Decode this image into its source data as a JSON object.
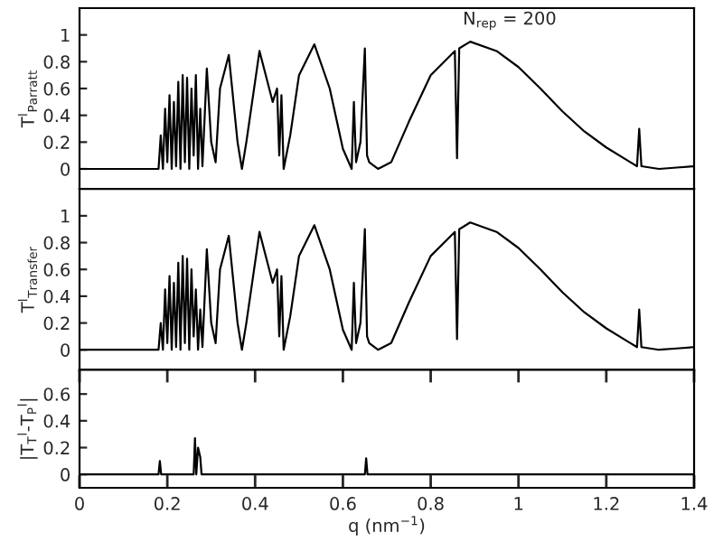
{
  "chart_data": [
    {
      "type": "line",
      "ylabel": "T$^{l}$$_{Parratt}$",
      "xlim": [
        0,
        1.4
      ],
      "ylim": [
        -0.15,
        1.2
      ],
      "yticks": [
        0,
        0.2,
        0.4,
        0.6,
        0.8,
        1
      ],
      "tick_labels": "y",
      "grid": false,
      "legend": false,
      "annotations": [
        "N$_{rep}$ = 200"
      ],
      "series": [
        {
          "color": "#000000",
          "x": [
            0,
            0.18,
            0.185,
            0.19,
            0.195,
            0.2,
            0.205,
            0.21,
            0.215,
            0.22,
            0.225,
            0.23,
            0.235,
            0.24,
            0.245,
            0.25,
            0.255,
            0.26,
            0.265,
            0.27,
            0.275,
            0.28,
            0.29,
            0.3,
            0.31,
            0.32,
            0.34,
            0.36,
            0.37,
            0.38,
            0.41,
            0.44,
            0.45,
            0.455,
            0.46,
            0.465,
            0.48,
            0.5,
            0.535,
            0.57,
            0.6,
            0.62,
            0.625,
            0.63,
            0.64,
            0.65,
            0.655,
            0.66,
            0.68,
            0.71,
            0.75,
            0.8,
            0.855,
            0.86,
            0.865,
            0.89,
            0.95,
            1.0,
            1.05,
            1.1,
            1.15,
            1.2,
            1.25,
            1.27,
            1.275,
            1.28,
            1.32,
            1.36,
            1.4
          ],
          "values": [
            0,
            0,
            0.25,
            0,
            0.45,
            0.05,
            0.55,
            0,
            0.5,
            0.02,
            0.65,
            0,
            0.7,
            0.05,
            0.68,
            0,
            0.6,
            0.1,
            0.7,
            0,
            0.45,
            0.02,
            0.75,
            0.2,
            0.05,
            0.6,
            0.85,
            0.2,
            0,
            0.2,
            0.88,
            0.5,
            0.6,
            0.1,
            0.55,
            0,
            0.25,
            0.7,
            0.93,
            0.6,
            0.15,
            0,
            0.5,
            0.05,
            0.2,
            0.9,
            0.1,
            0.05,
            0,
            0.05,
            0.35,
            0.7,
            0.88,
            0.08,
            0.9,
            0.95,
            0.88,
            0.76,
            0.6,
            0.43,
            0.28,
            0.16,
            0.06,
            0.02,
            0.3,
            0.02,
            0,
            0.01,
            0.02
          ]
        }
      ]
    },
    {
      "type": "line",
      "ylabel": "T$^{l}$$_{Transfer}$",
      "xlim": [
        0,
        1.4
      ],
      "ylim": [
        -0.15,
        1.2
      ],
      "yticks": [
        0,
        0.2,
        0.4,
        0.6,
        0.8,
        1
      ],
      "tick_labels": "y",
      "grid": false,
      "legend": false,
      "series": [
        {
          "color": "#000000",
          "x": [
            0,
            0.18,
            0.185,
            0.19,
            0.195,
            0.2,
            0.205,
            0.21,
            0.215,
            0.22,
            0.225,
            0.23,
            0.235,
            0.24,
            0.245,
            0.25,
            0.255,
            0.26,
            0.265,
            0.27,
            0.275,
            0.28,
            0.29,
            0.3,
            0.31,
            0.32,
            0.34,
            0.36,
            0.37,
            0.38,
            0.41,
            0.44,
            0.45,
            0.455,
            0.46,
            0.465,
            0.48,
            0.5,
            0.535,
            0.57,
            0.6,
            0.62,
            0.625,
            0.63,
            0.64,
            0.65,
            0.655,
            0.66,
            0.68,
            0.71,
            0.75,
            0.8,
            0.855,
            0.86,
            0.865,
            0.89,
            0.95,
            1.0,
            1.05,
            1.1,
            1.15,
            1.2,
            1.25,
            1.27,
            1.275,
            1.28,
            1.32,
            1.36,
            1.4
          ],
          "values": [
            0,
            0,
            0.2,
            0,
            0.45,
            0.05,
            0.55,
            0,
            0.5,
            0.02,
            0.65,
            0,
            0.7,
            0.05,
            0.68,
            0,
            0.6,
            0.1,
            0.45,
            0,
            0.3,
            0.02,
            0.75,
            0.2,
            0.05,
            0.6,
            0.85,
            0.2,
            0,
            0.2,
            0.88,
            0.5,
            0.6,
            0.1,
            0.55,
            0,
            0.25,
            0.7,
            0.93,
            0.6,
            0.15,
            0,
            0.5,
            0.05,
            0.2,
            0.9,
            0.1,
            0.05,
            0,
            0.05,
            0.35,
            0.7,
            0.88,
            0.08,
            0.9,
            0.95,
            0.88,
            0.76,
            0.6,
            0.43,
            0.28,
            0.16,
            0.06,
            0.02,
            0.3,
            0.02,
            0,
            0.01,
            0.02
          ]
        }
      ]
    },
    {
      "type": "line",
      "ylabel": "|T$_{T}$$^{l}$-T$_{P}$$^{l}$|",
      "xlabel": "q (nm$^{−1}$)",
      "xlim": [
        0,
        1.4
      ],
      "xticks": [
        0,
        0.2,
        0.4,
        0.6,
        0.8,
        1,
        1.2,
        1.4
      ],
      "ylim": [
        -0.1,
        0.78
      ],
      "yticks": [
        0,
        0.2,
        0.4,
        0.6
      ],
      "grid": false,
      "legend": false,
      "series": [
        {
          "color": "#000000",
          "x": [
            0,
            0.18,
            0.183,
            0.186,
            0.19,
            0.26,
            0.263,
            0.266,
            0.27,
            0.275,
            0.278,
            0.282,
            0.65,
            0.653,
            0.656,
            1.4
          ],
          "values": [
            0,
            0,
            0.1,
            0,
            0,
            0,
            0.27,
            0,
            0.2,
            0.13,
            0,
            0,
            0,
            0.12,
            0,
            0
          ]
        }
      ]
    }
  ]
}
